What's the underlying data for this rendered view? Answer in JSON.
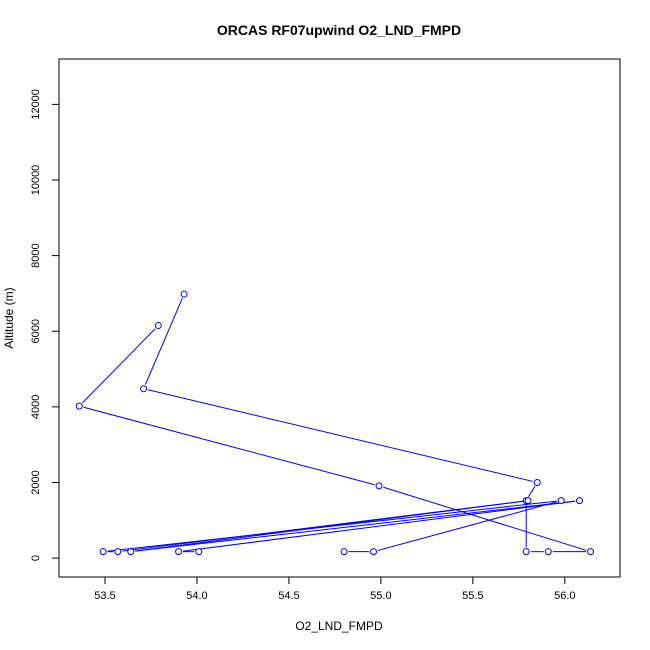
{
  "chart_data": {
    "type": "line",
    "title": "ORCAS RF07upwind O2_LND_FMPD",
    "xlabel": "O2_LND_FMPD",
    "ylabel": "Altitude (m)",
    "xlim": [
      53.25,
      56.3
    ],
    "ylim": [
      -500,
      13200
    ],
    "xticks": [
      53.5,
      54.0,
      54.5,
      55.0,
      55.5,
      56.0
    ],
    "xtick_labels": [
      "53.5",
      "54.0",
      "54.5",
      "55.0",
      "55.5",
      "56.0"
    ],
    "yticks": [
      0,
      2000,
      4000,
      6000,
      8000,
      10000,
      12000
    ],
    "ytick_labels": [
      "0",
      "2000",
      "4000",
      "6000",
      "8000",
      "10000",
      "12000"
    ],
    "grid": false,
    "series": [
      {
        "color": "#0000ff",
        "marker": "open-circle",
        "x": [
          53.93,
          53.71,
          55.85,
          55.79,
          55.79,
          55.91,
          56.14,
          54.99,
          53.36,
          53.79
        ],
        "y": [
          6980,
          4480,
          2000,
          1520,
          170,
          170,
          170,
          1910,
          4020,
          6150
        ]
      },
      {
        "color": "#0000ff",
        "marker": "open-circle",
        "x": [
          54.8,
          54.96,
          55.98,
          53.49,
          53.57,
          55.8,
          53.64,
          56.08,
          53.9,
          54.01
        ],
        "y": [
          170,
          170,
          1520,
          170,
          170,
          1520,
          170,
          1520,
          170,
          170
        ]
      }
    ]
  }
}
